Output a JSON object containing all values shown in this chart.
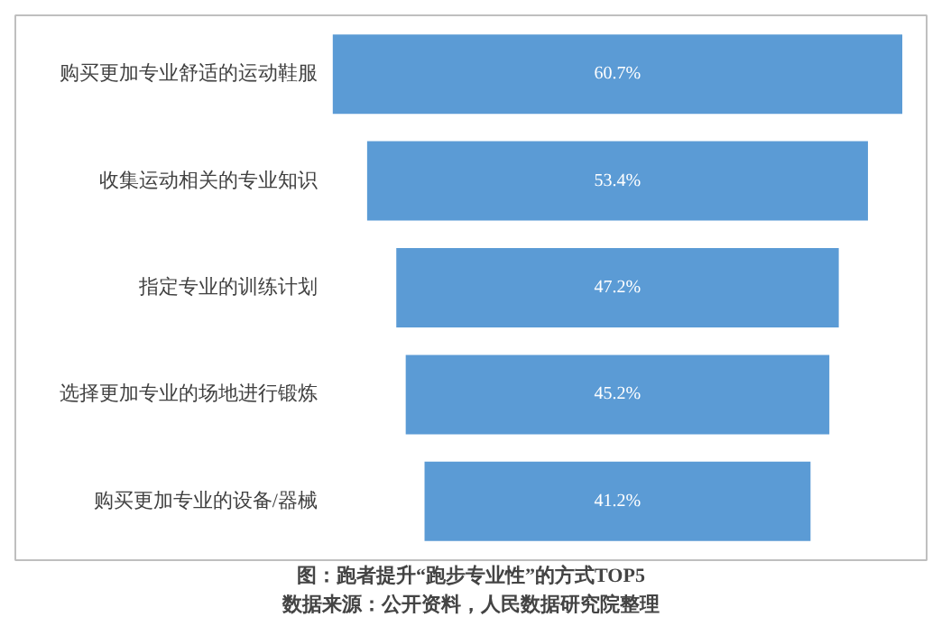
{
  "chart_data": {
    "type": "other",
    "title": "图：跑者提升“跑步专业性”的方式TOP5",
    "categories": [
      "购买更加专业舒适的运动鞋服",
      "收集运动相关的专业知识",
      "指定专业的训练计划",
      "选择更加专业的场地进行锻炼",
      "购买更加专业的设备/器械"
    ],
    "values": [
      60.7,
      53.4,
      47.2,
      45.2,
      41.2
    ],
    "value_labels": [
      "60.7%",
      "53.4%",
      "47.2%",
      "45.2%",
      "41.2%"
    ],
    "color": "#5b9bd5",
    "annotations": [
      "数据来源：公开资料，人民数据研究院整理"
    ]
  }
}
